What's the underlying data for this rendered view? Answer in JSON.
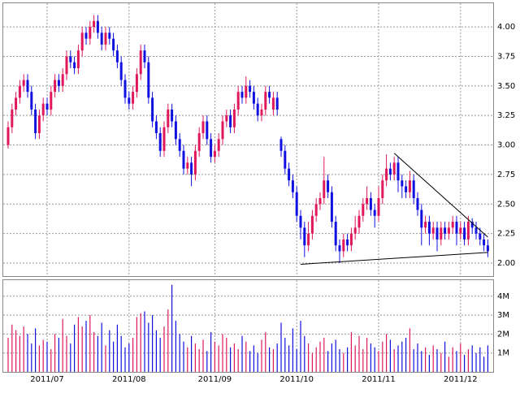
{
  "chart_data": {
    "type": "candlestick",
    "categories": [
      null,
      null,
      null,
      null,
      null,
      null,
      null,
      null,
      null,
      null,
      "2011/07",
      null,
      null,
      null,
      null,
      null,
      null,
      null,
      null,
      null,
      null,
      null,
      null,
      null,
      null,
      null,
      null,
      null,
      null,
      null,
      null,
      "2011/08",
      null,
      null,
      null,
      null,
      null,
      null,
      null,
      null,
      null,
      null,
      null,
      null,
      null,
      null,
      null,
      null,
      null,
      null,
      null,
      null,
      null,
      "2011/09",
      null,
      null,
      null,
      null,
      null,
      null,
      null,
      null,
      null,
      null,
      null,
      null,
      null,
      null,
      null,
      null,
      null,
      null,
      null,
      null,
      "2011/10",
      null,
      null,
      null,
      null,
      null,
      null,
      null,
      null,
      null,
      null,
      null,
      null,
      null,
      null,
      null,
      null,
      null,
      null,
      null,
      null,
      "2011/11",
      null,
      null,
      null,
      null,
      null,
      null,
      null,
      null,
      null,
      null,
      null,
      null,
      null,
      null,
      null,
      null,
      null,
      null,
      null,
      null,
      "2011/12",
      null,
      null,
      null,
      null,
      null,
      null,
      null
    ],
    "open": [
      3.0,
      3.15,
      3.3,
      3.4,
      3.5,
      3.55,
      3.45,
      3.3,
      3.1,
      3.25,
      3.35,
      3.3,
      3.45,
      3.55,
      3.5,
      3.6,
      3.75,
      3.7,
      3.65,
      3.8,
      3.95,
      3.9,
      4.0,
      4.05,
      3.95,
      3.85,
      3.95,
      3.9,
      3.8,
      3.7,
      3.55,
      3.4,
      3.35,
      3.45,
      3.6,
      3.8,
      3.7,
      3.4,
      3.2,
      3.1,
      2.95,
      3.15,
      3.3,
      3.2,
      3.05,
      2.95,
      2.8,
      2.85,
      2.75,
      2.95,
      3.1,
      3.2,
      3.05,
      2.9,
      2.95,
      3.05,
      3.2,
      3.25,
      3.15,
      3.3,
      3.45,
      3.4,
      3.5,
      3.45,
      3.35,
      3.25,
      3.3,
      3.45,
      3.3,
      3.4,
      3.05,
      2.95,
      2.8,
      2.7,
      2.6,
      2.4,
      2.3,
      2.15,
      2.25,
      2.4,
      2.5,
      2.55,
      2.7,
      2.6,
      2.35,
      2.15,
      2.1,
      2.2,
      2.15,
      2.25,
      2.3,
      2.4,
      2.5,
      2.55,
      2.45,
      2.4,
      2.55,
      2.7,
      2.8,
      2.75,
      2.85,
      2.7,
      2.65,
      2.6,
      2.7,
      2.55,
      2.45,
      2.3,
      2.35,
      2.25,
      2.3,
      2.2,
      2.3,
      2.25,
      2.3,
      2.35,
      2.25,
      2.3,
      2.2,
      2.35,
      2.3,
      2.25,
      2.2,
      2.15
    ],
    "high": [
      3.2,
      3.35,
      3.45,
      3.55,
      3.6,
      3.6,
      3.5,
      3.35,
      3.3,
      3.4,
      3.4,
      3.5,
      3.6,
      3.6,
      3.65,
      3.8,
      3.8,
      3.75,
      3.85,
      4.0,
      4.0,
      4.05,
      4.1,
      4.1,
      4.0,
      4.0,
      4.0,
      3.95,
      3.85,
      3.75,
      3.6,
      3.45,
      3.5,
      3.65,
      3.85,
      3.85,
      3.75,
      3.45,
      3.25,
      3.15,
      3.2,
      3.35,
      3.35,
      3.25,
      3.1,
      3.0,
      2.9,
      2.9,
      3.0,
      3.15,
      3.25,
      3.25,
      3.1,
      3.0,
      3.1,
      3.25,
      3.3,
      3.3,
      3.35,
      3.5,
      3.5,
      3.58,
      3.55,
      3.5,
      3.4,
      3.35,
      3.5,
      3.5,
      3.45,
      3.45,
      3.07,
      3.0,
      2.85,
      2.75,
      2.65,
      2.45,
      2.35,
      2.35,
      2.45,
      2.55,
      2.6,
      2.9,
      2.75,
      2.65,
      2.4,
      2.2,
      2.25,
      2.25,
      2.3,
      2.4,
      2.45,
      2.55,
      2.65,
      2.6,
      2.5,
      2.65,
      2.75,
      2.92,
      2.85,
      2.9,
      2.9,
      2.75,
      2.7,
      2.78,
      2.75,
      2.6,
      2.5,
      2.4,
      2.4,
      2.35,
      2.35,
      2.35,
      2.35,
      2.35,
      2.4,
      2.4,
      2.35,
      2.35,
      2.4,
      2.38,
      2.35,
      2.3,
      2.25,
      2.2
    ],
    "low": [
      2.97,
      3.1,
      3.25,
      3.35,
      3.45,
      3.4,
      3.25,
      3.05,
      3.05,
      3.2,
      3.25,
      3.25,
      3.4,
      3.45,
      3.45,
      3.55,
      3.65,
      3.6,
      3.6,
      3.75,
      3.85,
      3.85,
      3.95,
      3.9,
      3.8,
      3.8,
      3.85,
      3.75,
      3.65,
      3.5,
      3.35,
      3.3,
      3.3,
      3.4,
      3.55,
      3.65,
      3.35,
      3.15,
      3.05,
      2.9,
      2.9,
      3.1,
      3.15,
      3.0,
      2.9,
      2.75,
      2.75,
      2.65,
      2.7,
      2.9,
      3.05,
      3.0,
      2.85,
      2.85,
      2.9,
      3.0,
      3.15,
      3.1,
      3.1,
      3.25,
      3.35,
      3.35,
      3.4,
      3.3,
      3.2,
      3.2,
      3.25,
      3.35,
      3.25,
      3.25,
      2.9,
      2.75,
      2.65,
      2.55,
      2.35,
      2.2,
      2.05,
      2.1,
      2.2,
      2.35,
      2.45,
      2.5,
      2.55,
      2.3,
      2.1,
      2.0,
      2.05,
      2.1,
      2.1,
      2.2,
      2.25,
      2.35,
      2.45,
      2.4,
      2.3,
      2.35,
      2.5,
      2.65,
      2.7,
      2.7,
      2.6,
      2.55,
      2.55,
      2.55,
      2.5,
      2.4,
      2.15,
      2.25,
      2.15,
      2.2,
      2.1,
      2.15,
      2.2,
      2.2,
      2.25,
      2.15,
      2.2,
      2.15,
      2.15,
      2.25,
      2.2,
      2.15,
      2.1,
      2.05
    ],
    "close": [
      3.15,
      3.3,
      3.4,
      3.5,
      3.55,
      3.45,
      3.3,
      3.1,
      3.25,
      3.35,
      3.3,
      3.45,
      3.55,
      3.5,
      3.6,
      3.75,
      3.7,
      3.65,
      3.8,
      3.95,
      3.9,
      4.0,
      4.05,
      3.95,
      3.85,
      3.95,
      3.9,
      3.8,
      3.7,
      3.55,
      3.4,
      3.35,
      3.45,
      3.6,
      3.8,
      3.7,
      3.4,
      3.2,
      3.1,
      2.95,
      3.15,
      3.3,
      3.2,
      3.05,
      2.95,
      2.8,
      2.85,
      2.75,
      2.95,
      3.1,
      3.2,
      3.05,
      2.9,
      2.95,
      3.05,
      3.2,
      3.25,
      3.15,
      3.3,
      3.45,
      3.4,
      3.5,
      3.45,
      3.35,
      3.25,
      3.3,
      3.45,
      3.4,
      3.4,
      3.3,
      2.95,
      2.8,
      2.7,
      2.6,
      2.4,
      2.3,
      2.15,
      2.25,
      2.4,
      2.5,
      2.55,
      2.7,
      2.6,
      2.35,
      2.15,
      2.1,
      2.2,
      2.15,
      2.25,
      2.3,
      2.4,
      2.5,
      2.55,
      2.45,
      2.4,
      2.55,
      2.7,
      2.8,
      2.75,
      2.85,
      2.7,
      2.65,
      2.6,
      2.7,
      2.55,
      2.45,
      2.3,
      2.35,
      2.25,
      2.3,
      2.2,
      2.3,
      2.25,
      2.3,
      2.35,
      2.25,
      2.3,
      2.2,
      2.35,
      2.3,
      2.25,
      2.2,
      2.15,
      2.1
    ],
    "volume": [
      1.8,
      2.5,
      2.2,
      1.9,
      2.4,
      2.0,
      1.5,
      2.3,
      1.4,
      1.7,
      1.6,
      1.2,
      2.0,
      1.8,
      2.8,
      1.9,
      1.5,
      2.5,
      2.9,
      2.4,
      2.7,
      3.0,
      2.1,
      1.9,
      2.6,
      1.4,
      2.2,
      1.6,
      2.5,
      1.9,
      1.3,
      1.5,
      1.8,
      2.9,
      3.1,
      3.2,
      2.6,
      3.0,
      2.2,
      1.8,
      2.4,
      3.3,
      4.6,
      2.7,
      2.0,
      1.6,
      1.3,
      1.9,
      1.5,
      1.2,
      1.7,
      1.1,
      2.1,
      1.6,
      1.4,
      2.0,
      1.8,
      1.3,
      1.5,
      1.2,
      1.9,
      1.6,
      1.1,
      1.4,
      1.0,
      1.7,
      2.1,
      1.3,
      1.2,
      1.5,
      2.6,
      1.8,
      1.4,
      2.3,
      1.2,
      2.7,
      1.9,
      1.5,
      1.0,
      1.3,
      1.6,
      1.8,
      1.1,
      1.5,
      1.7,
      1.2,
      1.0,
      1.3,
      2.1,
      1.4,
      1.9,
      1.2,
      1.8,
      1.5,
      1.3,
      1.1,
      1.6,
      2.0,
      1.7,
      1.2,
      1.4,
      1.6,
      1.8,
      2.3,
      1.2,
      1.5,
      1.1,
      1.3,
      0.9,
      1.4,
      1.2,
      1.0,
      1.6,
      0.8,
      1.3,
      1.1,
      1.5,
      0.9,
      1.2,
      1.4,
      1.0,
      1.3,
      0.8,
      1.4
    ],
    "up_color": "#e0185a",
    "down_color": "#1010e0",
    "ylim": [
      1.89,
      4.2
    ],
    "yticks": [
      {
        "value": 2,
        "label": "2.00"
      },
      {
        "value": 2.25,
        "label": "2.25"
      },
      {
        "value": 2.5,
        "label": "2.50"
      },
      {
        "value": 2.75,
        "label": "2.75"
      },
      {
        "value": 3,
        "label": "3.00"
      },
      {
        "value": 3.25,
        "label": "3.25"
      },
      {
        "value": 3.5,
        "label": "3.50"
      },
      {
        "value": 3.75,
        "label": "3.75"
      },
      {
        "value": 4,
        "label": "4.00"
      }
    ],
    "volume_ylim": [
      0,
      4.85
    ],
    "volume_yticks": [
      {
        "value": 1,
        "label": "1M"
      },
      {
        "value": 2,
        "label": "2M"
      },
      {
        "value": 3,
        "label": "3M"
      },
      {
        "value": 4,
        "label": "4M"
      }
    ],
    "grid": true,
    "trendline_color": "#000000",
    "trendlines": [
      {
        "start": [
          99,
          2.93
        ],
        "end": [
          123,
          2.22
        ]
      },
      {
        "start": [
          75,
          1.99
        ],
        "end": [
          123,
          2.09
        ]
      }
    ]
  }
}
